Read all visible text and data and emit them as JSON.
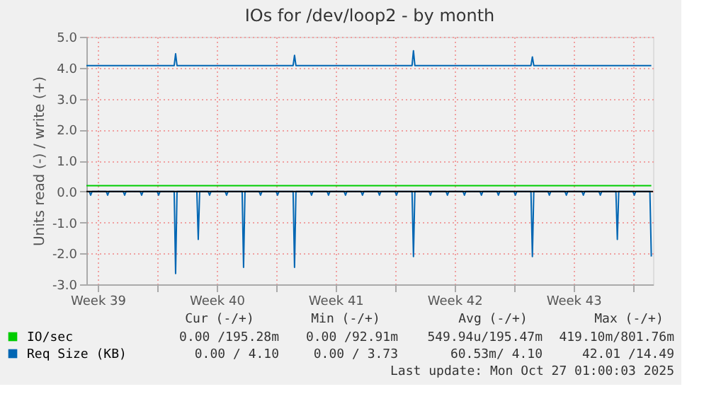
{
  "chart_data": {
    "type": "line",
    "title": "IOs for /dev/loop2 - by month",
    "ylabel": "Units read (-) / write (+)",
    "xlim": [
      "2025-09-24T20:00",
      "2025-10-28T04:24"
    ],
    "ylim": [
      -3,
      5
    ],
    "xticks": [
      {
        "value": "2025-09-25T12:00",
        "label": "Week 39"
      },
      {
        "value": "2025-09-29",
        "label": null
      },
      {
        "value": "2025-10-02T12:00",
        "label": "Week 40"
      },
      {
        "value": "2025-10-06",
        "label": null
      },
      {
        "value": "2025-10-09T12:00",
        "label": "Week 41"
      },
      {
        "value": "2025-10-13",
        "label": null
      },
      {
        "value": "2025-10-16T12:00",
        "label": "Week 42"
      },
      {
        "value": "2025-10-20",
        "label": null
      },
      {
        "value": "2025-10-23T12:00",
        "label": "Week 43"
      },
      {
        "value": "2025-10-27",
        "label": null
      }
    ],
    "yticks": [
      {
        "value": -3,
        "label": "-3.0"
      },
      {
        "value": -2,
        "label": "-2.0"
      },
      {
        "value": -1,
        "label": "-1.0"
      },
      {
        "value": 0,
        "label": "0.0"
      },
      {
        "value": 1,
        "label": "1.0"
      },
      {
        "value": 2,
        "label": "2.0"
      },
      {
        "value": 3,
        "label": "3.0"
      },
      {
        "value": 4,
        "label": "4.0"
      },
      {
        "value": 5,
        "label": "5.0"
      }
    ],
    "grid": true,
    "legend": "bottom",
    "marker": "none",
    "line_style": "solid",
    "ref_lines": [
      {
        "axis": "y",
        "value": 0,
        "color": "#000000"
      }
    ],
    "series": [
      {
        "name": "IO/sec",
        "color": "#00cc00",
        "x": [
          "2025-09-24T20:00",
          "2025-10-28T02:00"
        ],
        "values": [
          0.19,
          0.19
        ]
      },
      {
        "name": "Req Size (KB)",
        "color": "#0066b3",
        "x": [
          "2025-09-24T20:00",
          "2025-09-30T00:00",
          "2025-09-30T02:00",
          "2025-09-30T04:00",
          "2025-10-07T00:00",
          "2025-10-07T02:00",
          "2025-10-07T04:00",
          "2025-10-14T00:00",
          "2025-10-14T02:00",
          "2025-10-14T04:00",
          "2025-10-21T00:00",
          "2025-10-21T02:00",
          "2025-10-21T04:00",
          "2025-10-28T02:00"
        ],
        "values": [
          4.07,
          4.07,
          4.45,
          4.07,
          4.07,
          4.4,
          4.07,
          4.07,
          4.55,
          4.07,
          4.07,
          4.35,
          4.07,
          4.07
        ]
      },
      {
        "color": "#0066b3",
        "x": [
          "2025-09-25T00:00",
          "2025-09-25T02:00",
          "2025-09-25T04:00",
          "2025-09-26T00:00",
          "2025-09-26T02:00",
          "2025-09-26T04:00",
          "2025-09-27T00:00",
          "2025-09-27T02:00",
          "2025-09-27T04:00",
          "2025-09-28T00:00",
          "2025-09-28T02:00",
          "2025-09-28T04:00",
          "2025-09-29T00:00",
          "2025-09-29T02:00",
          "2025-09-29T04:00",
          "2025-09-30T00:00",
          "2025-09-30T02:00",
          "2025-09-30T04:00",
          "2025-10-01T08:00",
          "2025-10-01T10:00",
          "2025-10-01T12:00",
          "2025-10-02T00:00",
          "2025-10-02T02:00",
          "2025-10-02T04:00",
          "2025-10-03T00:00",
          "2025-10-03T02:00",
          "2025-10-03T04:00",
          "2025-10-04T00:00",
          "2025-10-04T02:00",
          "2025-10-04T04:00",
          "2025-10-05T00:00",
          "2025-10-05T02:00",
          "2025-10-05T04:00",
          "2025-10-06T00:00",
          "2025-10-06T02:00",
          "2025-10-06T04:00",
          "2025-10-07T00:00",
          "2025-10-07T02:00",
          "2025-10-07T04:00",
          "2025-10-08T00:00",
          "2025-10-08T02:00",
          "2025-10-08T04:00",
          "2025-10-09T00:00",
          "2025-10-09T02:00",
          "2025-10-09T04:00",
          "2025-10-10T00:00",
          "2025-10-10T02:00",
          "2025-10-10T04:00",
          "2025-10-11T00:00",
          "2025-10-11T02:00",
          "2025-10-11T04:00",
          "2025-10-12T00:00",
          "2025-10-12T02:00",
          "2025-10-12T04:00",
          "2025-10-13T00:00",
          "2025-10-13T02:00",
          "2025-10-13T04:00",
          "2025-10-14T00:00",
          "2025-10-14T02:00",
          "2025-10-14T04:00",
          "2025-10-15T00:00",
          "2025-10-15T02:00",
          "2025-10-15T04:00",
          "2025-10-16T00:00",
          "2025-10-16T02:00",
          "2025-10-16T04:00",
          "2025-10-17T00:00",
          "2025-10-17T02:00",
          "2025-10-17T04:00",
          "2025-10-18T00:00",
          "2025-10-18T02:00",
          "2025-10-18T04:00",
          "2025-10-19T00:00",
          "2025-10-19T02:00",
          "2025-10-19T04:00",
          "2025-10-20T00:00",
          "2025-10-20T02:00",
          "2025-10-20T04:00",
          "2025-10-21T00:00",
          "2025-10-21T02:00",
          "2025-10-21T04:00",
          "2025-10-22T00:00",
          "2025-10-22T02:00",
          "2025-10-22T04:00",
          "2025-10-23T00:00",
          "2025-10-23T02:00",
          "2025-10-23T04:00",
          "2025-10-24T00:00",
          "2025-10-24T02:00",
          "2025-10-24T04:00",
          "2025-10-25T00:00",
          "2025-10-25T02:00",
          "2025-10-25T04:00",
          "2025-10-26T00:00",
          "2025-10-26T02:00",
          "2025-10-26T04:00",
          "2025-10-27T00:00",
          "2025-10-27T02:00",
          "2025-10-27T04:00",
          "2025-10-28T00:00",
          "2025-10-28T02:00"
        ],
        "values": [
          0,
          -0.12,
          0,
          0,
          -0.12,
          0,
          0,
          -0.12,
          0,
          0,
          -0.12,
          0,
          0,
          -0.12,
          0,
          0,
          -2.65,
          0,
          0,
          -1.55,
          0,
          0,
          -0.12,
          0,
          0,
          -0.12,
          0,
          0,
          -2.45,
          0,
          0,
          -0.12,
          0,
          0,
          -0.12,
          0,
          0,
          -2.45,
          0,
          0,
          -0.12,
          0,
          0,
          -0.12,
          0,
          0,
          -0.12,
          0,
          0,
          -0.12,
          0,
          0,
          -0.12,
          0,
          0,
          -0.12,
          0,
          0,
          -2.1,
          0,
          0,
          -0.12,
          0,
          0,
          -0.12,
          0,
          0,
          -0.12,
          0,
          0,
          -0.12,
          0,
          0,
          -0.12,
          0,
          0,
          -0.12,
          0,
          0,
          -2.1,
          0,
          0,
          -0.12,
          0,
          0,
          -0.12,
          0,
          0,
          -0.12,
          0,
          0,
          -0.12,
          0,
          0,
          -1.55,
          0,
          0,
          -0.12,
          0,
          0,
          -2.1
        ]
      }
    ],
    "annotations": [
      "Cur (-/+)",
      "Min (-/+)",
      "Avg (-/+)",
      "Max (-/+)",
      "0.00 /195.28m",
      "0.00 /92.91m",
      "549.94u/195.47m",
      "419.10m/801.76m",
      "0.00 / 4.10",
      "0.00 / 3.73",
      "60.53m/ 4.10",
      "42.01 /14.49",
      "Last update: Mon Oct 27 01:00:03 2025"
    ]
  }
}
